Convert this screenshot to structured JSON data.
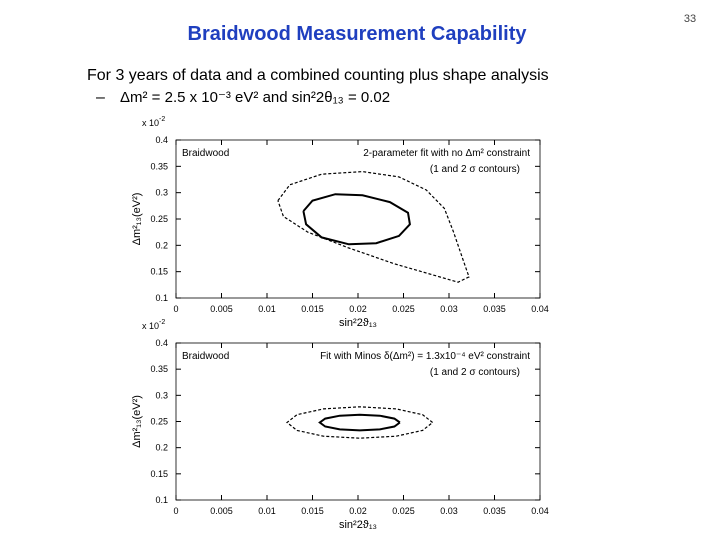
{
  "slide": {
    "title": "Braidwood Measurement Capability",
    "page": "33",
    "bullet": "For 3 years of data and a combined counting plus shape analysis",
    "sub_marker": "–",
    "sub_bullet": "Δm² = 2.5 x 10⁻³ eV² and sin²2θ₁₃ = 0.02"
  },
  "chart_data": [
    {
      "type": "line",
      "xlabel": "sin²2ϑ₁₃",
      "ylabel": "Δm²₁₃(eV²)",
      "multiplier": "x 10",
      "multiplier_exp": "-2",
      "annotations": [
        "Braidwood",
        "2-parameter fit with no Δm² constraint",
        "(1 and 2 σ contours)"
      ],
      "xlim": [
        0,
        0.04
      ],
      "xticks": [
        0,
        0.005,
        0.01,
        0.015,
        0.02,
        0.025,
        0.03,
        0.035,
        0.04
      ],
      "ylim": [
        0.1,
        0.4
      ],
      "yticks": [
        0.1,
        0.15,
        0.2,
        0.25,
        0.3,
        0.35,
        0.4
      ],
      "series": [
        {
          "color": "#000000",
          "dashed": false,
          "x": [
            0.014,
            0.015,
            0.0175,
            0.0205,
            0.0235,
            0.0255,
            0.0257,
            0.0245,
            0.022,
            0.019,
            0.016,
            0.0143,
            0.014
          ],
          "values": [
            0.265,
            0.285,
            0.297,
            0.295,
            0.282,
            0.262,
            0.24,
            0.218,
            0.204,
            0.202,
            0.215,
            0.24,
            0.265
          ]
        },
        {
          "color": "#000000",
          "dashed": true,
          "x": [
            0.0112,
            0.0125,
            0.016,
            0.0205,
            0.0245,
            0.0275,
            0.0295,
            0.0305,
            0.0315,
            0.0322,
            0.031,
            0.028,
            0.024,
            0.019,
            0.0145,
            0.0118,
            0.0112
          ],
          "values": [
            0.285,
            0.315,
            0.335,
            0.34,
            0.33,
            0.305,
            0.27,
            0.225,
            0.175,
            0.14,
            0.13,
            0.145,
            0.165,
            0.195,
            0.225,
            0.255,
            0.285
          ]
        }
      ]
    },
    {
      "type": "line",
      "xlabel": "sin²2ϑ₁₃",
      "ylabel": "Δm²₁₃(eV²)",
      "multiplier": "x 10",
      "multiplier_exp": "-2",
      "annotations": [
        "Braidwood",
        "Fit with Minos δ(Δm²) = 1.3x10⁻⁴ eV² constraint",
        "(1 and 2 σ contours)"
      ],
      "xlim": [
        0,
        0.04
      ],
      "xticks": [
        0,
        0.005,
        0.01,
        0.015,
        0.02,
        0.025,
        0.03,
        0.035,
        0.04
      ],
      "ylim": [
        0.1,
        0.4
      ],
      "yticks": [
        0.1,
        0.15,
        0.2,
        0.25,
        0.3,
        0.35,
        0.4
      ],
      "series": [
        {
          "color": "#000000",
          "dashed": false,
          "x": [
            0.0246,
            0.024,
            0.0224,
            0.0202,
            0.018,
            0.0164,
            0.0158,
            0.0164,
            0.018,
            0.0202,
            0.0224,
            0.024,
            0.0246
          ],
          "values": [
            0.248,
            0.2555,
            0.261,
            0.263,
            0.261,
            0.2555,
            0.248,
            0.2405,
            0.235,
            0.233,
            0.235,
            0.2405,
            0.248
          ]
        },
        {
          "color": "#000000",
          "dashed": true,
          "x": [
            0.0282,
            0.0271,
            0.0242,
            0.0202,
            0.0162,
            0.0133,
            0.0122,
            0.0133,
            0.0162,
            0.0202,
            0.0242,
            0.0271,
            0.0282
          ],
          "values": [
            0.248,
            0.263,
            0.274,
            0.278,
            0.274,
            0.263,
            0.248,
            0.233,
            0.222,
            0.218,
            0.222,
            0.233,
            0.248
          ]
        }
      ]
    }
  ]
}
